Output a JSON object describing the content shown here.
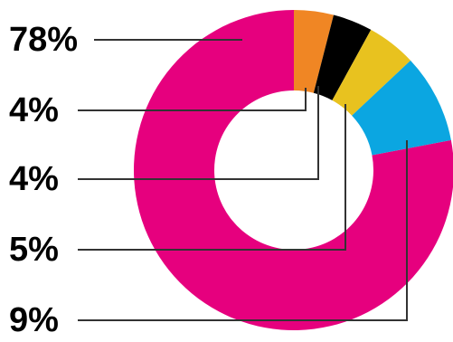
{
  "chart_data": {
    "type": "donut",
    "values": [
      78,
      4,
      4,
      5,
      9
    ],
    "value_labels": [
      "78%",
      "4%",
      "4%",
      "5%",
      "9%"
    ],
    "colors": [
      "#e6007e",
      "#f08624",
      "#000000",
      "#e8c21f",
      "#0ba6e1"
    ]
  }
}
